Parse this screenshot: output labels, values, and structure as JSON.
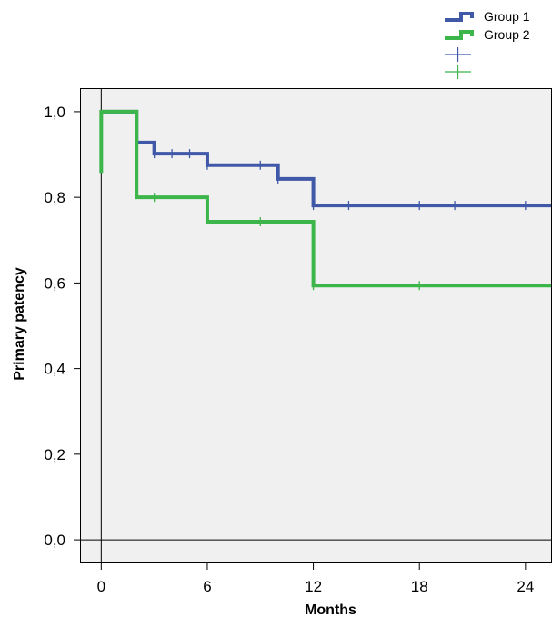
{
  "chart_data": {
    "type": "line",
    "step": true,
    "xlabel": "Months",
    "ylabel": "Primary patency",
    "xlim": [
      -1.2,
      25.5
    ],
    "ylim": [
      -0.055,
      1.055
    ],
    "xticks": [
      0,
      6,
      12,
      18,
      24
    ],
    "xtick_labels": [
      "0",
      "6",
      "12",
      "18",
      "24"
    ],
    "yticks": [
      0.0,
      0.2,
      0.4,
      0.6,
      0.8,
      1.0
    ],
    "ytick_labels": [
      "0,0",
      "0,2",
      "0,4",
      "0,6",
      "0,8",
      "1,0"
    ],
    "plot_background": "#f0f0f0",
    "legend_position": "top-right",
    "series": [
      {
        "name": "Group 1",
        "color": "#3f58a8",
        "steps": [
          {
            "x": 0,
            "y": 1.0
          },
          {
            "x": 2,
            "y": 0.928
          },
          {
            "x": 3,
            "y": 0.902
          },
          {
            "x": 6,
            "y": 0.875
          },
          {
            "x": 10,
            "y": 0.843
          },
          {
            "x": 12,
            "y": 0.781
          },
          {
            "x": 25.5,
            "y": 0.781
          }
        ],
        "censored": [
          {
            "x": 2,
            "y": 0.928
          },
          {
            "x": 3,
            "y": 0.902
          },
          {
            "x": 4,
            "y": 0.902
          },
          {
            "x": 5,
            "y": 0.902
          },
          {
            "x": 6,
            "y": 0.875
          },
          {
            "x": 9,
            "y": 0.875
          },
          {
            "x": 10,
            "y": 0.843
          },
          {
            "x": 12,
            "y": 0.781
          },
          {
            "x": 14,
            "y": 0.781
          },
          {
            "x": 18,
            "y": 0.781
          },
          {
            "x": 20,
            "y": 0.781
          },
          {
            "x": 24,
            "y": 0.781
          }
        ]
      },
      {
        "name": "Group 2",
        "color": "#3cb54a",
        "steps": [
          {
            "x": 0,
            "y": 0.857
          },
          {
            "x": 0,
            "y": 1.0
          },
          {
            "x": 2,
            "y": 0.8
          },
          {
            "x": 6,
            "y": 0.743
          },
          {
            "x": 12,
            "y": 0.594
          },
          {
            "x": 25.5,
            "y": 0.594
          }
        ],
        "censored": [
          {
            "x": 3,
            "y": 0.8
          },
          {
            "x": 9,
            "y": 0.743
          },
          {
            "x": 12,
            "y": 0.594
          },
          {
            "x": 18,
            "y": 0.594
          }
        ]
      }
    ]
  }
}
